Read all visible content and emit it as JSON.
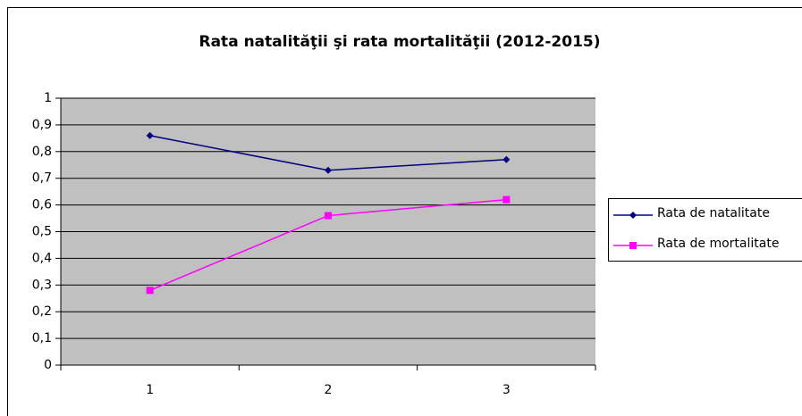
{
  "chart_data": {
    "type": "line",
    "title": "Rata natalităţii şi rata mortalităţii (2012-2015)",
    "categories": [
      "1",
      "2",
      "3"
    ],
    "series": [
      {
        "name": "Rata de natalitate",
        "color": "#000080",
        "marker": "diamond",
        "values": [
          0.86,
          0.73,
          0.77
        ]
      },
      {
        "name": "Rata de mortalitate",
        "color": "#ff00ff",
        "marker": "square",
        "values": [
          0.28,
          0.56,
          0.62
        ]
      }
    ],
    "ylim": [
      0,
      1
    ],
    "yticks": [
      0,
      {
        "value": 0.1,
        "label": "0,1"
      },
      {
        "value": 0.2,
        "label": "0,2"
      },
      {
        "value": 0.3,
        "label": "0,3"
      },
      {
        "value": 0.4,
        "label": "0,4"
      },
      {
        "value": 0.5,
        "label": "0,5"
      },
      {
        "value": 0.6,
        "label": "0,6"
      },
      {
        "value": 0.7,
        "label": "0,7"
      },
      {
        "value": 0.8,
        "label": "0,8"
      },
      {
        "value": 0.9,
        "label": "0,9"
      },
      1
    ],
    "grid": true,
    "legend": "right",
    "plot_background": "#c0c0c0"
  }
}
